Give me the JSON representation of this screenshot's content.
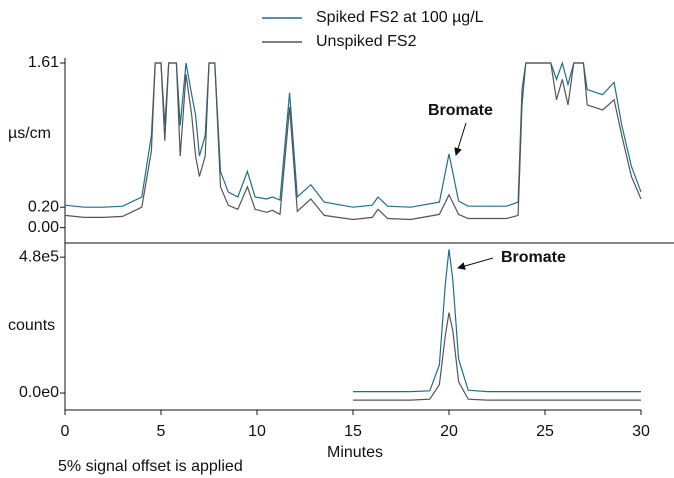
{
  "chart_data": [
    {
      "type": "line",
      "ylabel": "µs/cm",
      "x": [
        0,
        1,
        2,
        3,
        4,
        4.5,
        4.7,
        5.0,
        5.2,
        5.4,
        5.8,
        6.0,
        6.3,
        6.6,
        6.8,
        7.0,
        7.3,
        7.5,
        7.8,
        8.1,
        8.5,
        9.0,
        9.5,
        9.9,
        10.5,
        10.8,
        11.2,
        11.7,
        12.1,
        12.8,
        13.5,
        15.0,
        16.0,
        16.3,
        16.8,
        18,
        19.5,
        20.0,
        20.5,
        21,
        23,
        23.6,
        23.8,
        24.0,
        25.3,
        25.6,
        25.9,
        26.2,
        26.5,
        27.0,
        27.2,
        28.0,
        28.6,
        29.0,
        29.5,
        30.0
      ],
      "series": [
        {
          "name": "Spiked FS2 at 100 µg/L",
          "color": "#1f6f8b",
          "values": [
            0.22,
            0.2,
            0.2,
            0.21,
            0.3,
            0.9,
            1.61,
            1.61,
            1.0,
            1.61,
            1.61,
            1.0,
            1.61,
            1.3,
            1.1,
            0.7,
            0.9,
            1.61,
            1.61,
            0.55,
            0.35,
            0.3,
            0.55,
            0.3,
            0.28,
            0.3,
            0.27,
            1.32,
            0.3,
            0.42,
            0.25,
            0.2,
            0.22,
            0.3,
            0.21,
            0.2,
            0.25,
            0.72,
            0.26,
            0.21,
            0.21,
            0.25,
            1.35,
            1.61,
            1.61,
            1.45,
            1.61,
            1.4,
            1.61,
            1.61,
            1.35,
            1.3,
            1.42,
            1.0,
            0.6,
            0.35
          ]
        },
        {
          "name": "Unspiked FS2",
          "color": "#555555",
          "values": [
            0.12,
            0.1,
            0.1,
            0.11,
            0.2,
            0.75,
            1.61,
            1.61,
            0.85,
            1.61,
            1.61,
            0.7,
            1.5,
            1.1,
            0.7,
            0.5,
            0.7,
            1.61,
            1.61,
            0.4,
            0.22,
            0.18,
            0.4,
            0.18,
            0.15,
            0.17,
            0.13,
            1.18,
            0.16,
            0.28,
            0.12,
            0.08,
            0.1,
            0.18,
            0.09,
            0.08,
            0.13,
            0.32,
            0.13,
            0.09,
            0.09,
            0.12,
            1.2,
            1.61,
            1.61,
            1.25,
            1.45,
            1.2,
            1.61,
            1.61,
            1.2,
            1.15,
            1.25,
            0.9,
            0.5,
            0.28
          ]
        }
      ],
      "xlim": [
        0,
        30
      ],
      "ylim": [
        -0.15,
        1.61
      ],
      "yticks": [
        {
          "value": 0,
          "label": "0.00"
        },
        {
          "value": 0.2,
          "label": "0.20"
        },
        1.61
      ],
      "annotation": "Bromate"
    },
    {
      "type": "line",
      "ylabel": "counts",
      "xlabel": "Minutes",
      "note": "5% signal offset is applied",
      "x": [
        15,
        18,
        19,
        19.5,
        19.8,
        20.0,
        20.2,
        20.5,
        21,
        22,
        30
      ],
      "series": [
        {
          "color": "#1f6f8b",
          "values": [
            5000,
            5000,
            8000,
            100000,
            380000,
            508000,
            400000,
            120000,
            10000,
            5000,
            5000
          ]
        },
        {
          "color": "#555555",
          "values": [
            -25000,
            -25000,
            -22000,
            30000,
            200000,
            284000,
            220000,
            40000,
            -22000,
            -25000,
            -25000
          ]
        }
      ],
      "xlim": [
        0,
        30
      ],
      "xticks": [
        0,
        5,
        10,
        15,
        20,
        25,
        30
      ],
      "ylim": [
        -60000,
        530000
      ],
      "yticks": [
        {
          "value": 0,
          "label": "0.0e0"
        },
        {
          "value": 480000,
          "label": "4.8e5"
        }
      ],
      "annotation": "Bromate"
    }
  ]
}
